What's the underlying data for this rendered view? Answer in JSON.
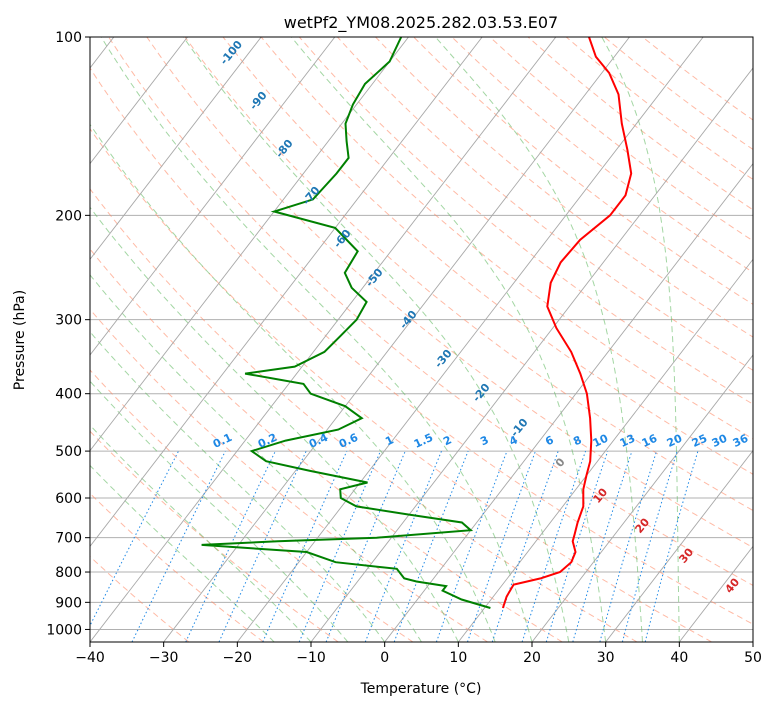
{
  "chart_data": {
    "type": "line",
    "subtype": "skew-t log-p diagram",
    "title": "wetPf2_YM08.2025.282.03.53.E07",
    "xlabel": "Temperature (°C)",
    "ylabel": "Pressure (hPa)",
    "xlim": [
      -40,
      50
    ],
    "ylim": [
      1050,
      100
    ],
    "yscale": "log",
    "grid": true,
    "x_ticks": [
      -40,
      -30,
      -20,
      -10,
      0,
      10,
      20,
      30,
      40,
      50
    ],
    "x_tick_labels": [
      "−40",
      "−30",
      "−20",
      "−10",
      "0",
      "10",
      "20",
      "30",
      "40",
      "50"
    ],
    "y_ticks": [
      100,
      200,
      300,
      400,
      500,
      600,
      700,
      800,
      900,
      1000
    ],
    "y_tick_labels": [
      "100",
      "200",
      "300",
      "400",
      "500",
      "600",
      "700",
      "800",
      "900",
      "1000"
    ],
    "series": [
      {
        "role": "temperature",
        "color": "#ff0000",
        "points": [
          [
            920,
            12.5
          ],
          [
            880,
            11.8
          ],
          [
            840,
            11.5
          ],
          [
            820,
            14.5
          ],
          [
            800,
            16.5
          ],
          [
            770,
            17.0
          ],
          [
            740,
            16.5
          ],
          [
            710,
            15.0
          ],
          [
            690,
            14.5
          ],
          [
            660,
            13.7
          ],
          [
            620,
            12.8
          ],
          [
            580,
            11.0
          ],
          [
            550,
            10.0
          ],
          [
            520,
            9.0
          ],
          [
            480,
            7.0
          ],
          [
            440,
            4.5
          ],
          [
            400,
            1.5
          ],
          [
            370,
            -1.5
          ],
          [
            340,
            -5.0
          ],
          [
            310,
            -9.5
          ],
          [
            285,
            -13.0
          ],
          [
            260,
            -15.0
          ],
          [
            240,
            -15.8
          ],
          [
            220,
            -15.5
          ],
          [
            200,
            -14.0
          ],
          [
            185,
            -14.0
          ],
          [
            170,
            -15.5
          ],
          [
            155,
            -18.5
          ],
          [
            140,
            -22.0
          ],
          [
            125,
            -25.5
          ],
          [
            115,
            -29.0
          ],
          [
            108,
            -32.5
          ],
          [
            100,
            -35.5
          ]
        ]
      },
      {
        "role": "dewpoint",
        "color": "#008000",
        "points": [
          [
            920,
            10.8
          ],
          [
            890,
            6.0
          ],
          [
            860,
            2.5
          ],
          [
            845,
            2.5
          ],
          [
            830,
            -2.0
          ],
          [
            820,
            -4.0
          ],
          [
            790,
            -6.0
          ],
          [
            770,
            -15.0
          ],
          [
            740,
            -20.0
          ],
          [
            720,
            -35.0
          ],
          [
            710,
            -25.0
          ],
          [
            700,
            -12.0
          ],
          [
            680,
            0.0
          ],
          [
            660,
            -2.0
          ],
          [
            640,
            -10.0
          ],
          [
            620,
            -18.0
          ],
          [
            600,
            -21.0
          ],
          [
            580,
            -22.0
          ],
          [
            565,
            -19.0
          ],
          [
            540,
            -28.0
          ],
          [
            520,
            -35.0
          ],
          [
            500,
            -38.0
          ],
          [
            480,
            -34.5
          ],
          [
            460,
            -28.5
          ],
          [
            440,
            -26.5
          ],
          [
            420,
            -30.0
          ],
          [
            400,
            -36.0
          ],
          [
            385,
            -38.0
          ],
          [
            370,
            -47.0
          ],
          [
            360,
            -41.0
          ],
          [
            340,
            -38.5
          ],
          [
            320,
            -38.0
          ],
          [
            300,
            -37.5
          ],
          [
            280,
            -38.0
          ],
          [
            265,
            -41.5
          ],
          [
            250,
            -44.0
          ],
          [
            230,
            -44.5
          ],
          [
            210,
            -50.0
          ],
          [
            197,
            -60.0
          ],
          [
            188,
            -56.0
          ],
          [
            170,
            -55.5
          ],
          [
            160,
            -55.5
          ],
          [
            150,
            -57.5
          ],
          [
            140,
            -59.5
          ],
          [
            130,
            -60.5
          ],
          [
            120,
            -61.0
          ],
          [
            110,
            -60.0
          ],
          [
            100,
            -61.0
          ]
        ]
      }
    ],
    "guide_lines": {
      "dry_adiabats_color": "#ff8c69",
      "moist_adiabats_color": "#66bb66",
      "mixing_ratio_color": "#1e88e5",
      "isotherm_color": "#999999",
      "isotherm_labels": [
        "-100",
        "-90",
        "-80",
        "-70",
        "-60",
        "-50",
        "-40",
        "-30",
        "-20",
        "-10"
      ],
      "isotherm_labels_warm": [
        "0",
        "10",
        "20",
        "30",
        "40"
      ],
      "mixing_ratio_labels": [
        "0.1",
        "0.2",
        "0.4",
        "0.6",
        "1",
        "1.5",
        "2",
        "3",
        "4",
        "6",
        "8",
        "10",
        "13",
        "16",
        "20",
        "25",
        "30",
        "36"
      ],
      "mixing_ratio_values": [
        0.1,
        0.2,
        0.4,
        0.6,
        1,
        1.5,
        2,
        3,
        4,
        6,
        8,
        10,
        13,
        16,
        20,
        25,
        30,
        36
      ]
    }
  }
}
